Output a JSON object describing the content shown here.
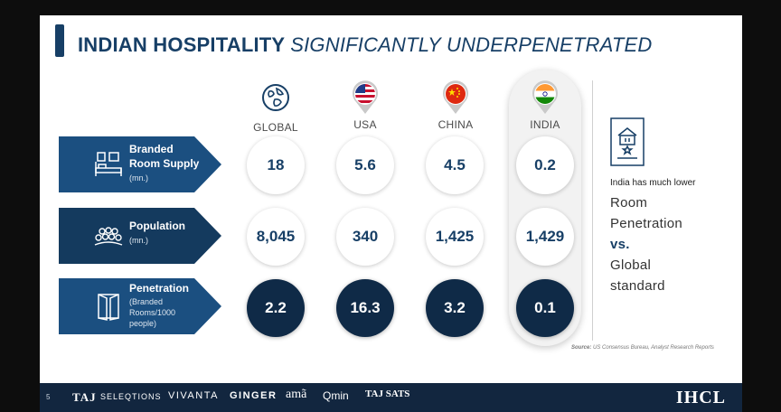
{
  "title": {
    "main": "INDIAN HOSPITALITY",
    "emphasis": "SIGNIFICANTLY UNDERPENETRATED"
  },
  "columns": [
    {
      "label": "GLOBAL",
      "icon": "globe-icon"
    },
    {
      "label": "USA",
      "icon": "usa-flag-icon"
    },
    {
      "label": "CHINA",
      "icon": "china-flag-icon"
    },
    {
      "label": "INDIA",
      "icon": "india-flag-icon"
    }
  ],
  "rows": [
    {
      "title_1": "Branded",
      "title_2": "Room Supply",
      "sub_1": "(mn.)",
      "sub_2": "",
      "sub_3": "",
      "icon": "hotel-bed-icon",
      "values": [
        "18",
        "5.6",
        "4.5",
        "0.2"
      ]
    },
    {
      "title_1": "Population",
      "title_2": "",
      "sub_1": "(mn.)",
      "sub_2": "",
      "sub_3": "",
      "icon": "people-crowd-icon",
      "values": [
        "8,045",
        "340",
        "1,425",
        "1,429"
      ]
    },
    {
      "title_1": "Penetration",
      "title_2": "",
      "sub_1": "(Branded",
      "sub_2": "Rooms/1000",
      "sub_3": "people)",
      "icon": "door-icon",
      "values": [
        "2.2",
        "16.3",
        "3.2",
        "0.1"
      ]
    }
  ],
  "note": {
    "small": "India has much lower",
    "line1": "Room",
    "line2": "Penetration",
    "vs": "vs.",
    "line3": "Global",
    "line4": "standard",
    "icon": "hotel-building-icon"
  },
  "source": {
    "label": "Source:",
    "text": "US Consensus Bureau, Analyst Research Reports"
  },
  "footer": {
    "page": "5",
    "brands": [
      "TAJ",
      "SELEQTIONS",
      "VIVANTA",
      "GINGER",
      "amã",
      "Qmin",
      "TAJ SATS"
    ],
    "company": "IHCL"
  },
  "colors": {
    "navy": "#173f66",
    "dark_navy": "#0f2a47",
    "footer": "#12263f"
  }
}
